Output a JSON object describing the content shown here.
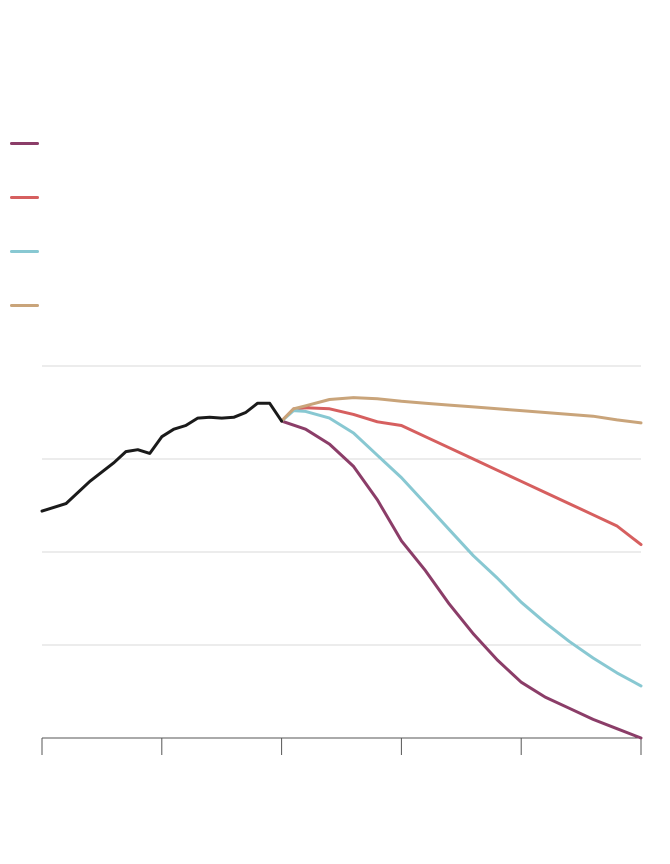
{
  "chart_data": {
    "type": "line",
    "title": "",
    "xlabel": "",
    "ylabel": "",
    "x_range": [
      0,
      100
    ],
    "y_range": [
      0,
      100
    ],
    "grid": true,
    "legend_placement": "top-left",
    "x_ticks": [
      0,
      20,
      40,
      60,
      80,
      100
    ],
    "y_gridlines": [
      25,
      50,
      75,
      100
    ],
    "x_tick_labels": [],
    "y_tick_labels": [],
    "series": [
      {
        "color": "#1a1a1a",
        "x": [
          0,
          4,
          8,
          12,
          14,
          16,
          18,
          20,
          22,
          24,
          26,
          28,
          30,
          32,
          34,
          36,
          38,
          40
        ],
        "y": [
          61,
          63,
          69,
          74,
          77,
          77.5,
          76.5,
          81,
          83,
          84,
          86,
          86.2,
          86,
          86.2,
          87.5,
          90,
          90,
          85.2
        ]
      },
      {
        "color": "#8b3d68",
        "x": [
          40,
          44,
          48,
          52,
          56,
          60,
          64,
          68,
          72,
          76,
          80,
          84,
          88,
          92,
          96,
          100
        ],
        "y": [
          85.2,
          83,
          79,
          73,
          64,
          53,
          45,
          36,
          28,
          21,
          15,
          11,
          8,
          5,
          2.5,
          0
        ]
      },
      {
        "color": "#d65f5f",
        "x": [
          40,
          42,
          44,
          48,
          52,
          56,
          60,
          64,
          68,
          72,
          76,
          80,
          84,
          88,
          92,
          96,
          100
        ],
        "y": [
          85.2,
          88.5,
          88.8,
          88.5,
          87,
          85,
          84,
          81,
          78,
          75,
          72,
          69,
          66,
          63,
          60,
          57,
          52
        ]
      },
      {
        "color": "#88c8d2",
        "x": [
          40,
          42,
          44,
          48,
          52,
          56,
          60,
          64,
          68,
          72,
          76,
          80,
          84,
          88,
          92,
          96,
          100
        ],
        "y": [
          85.2,
          88,
          87.8,
          86,
          82,
          76,
          70,
          63,
          56,
          49,
          43,
          36.5,
          31,
          26,
          21.5,
          17.5,
          14
        ]
      },
      {
        "color": "#c9a47a",
        "x": [
          40,
          42,
          44,
          48,
          52,
          56,
          60,
          64,
          68,
          72,
          76,
          80,
          84,
          88,
          92,
          96,
          100
        ],
        "y": [
          85.2,
          88.5,
          89.3,
          91,
          91.5,
          91.2,
          90.5,
          90,
          89.5,
          89,
          88.5,
          88,
          87.5,
          87,
          86.5,
          85.5,
          84.7
        ]
      }
    ],
    "legend": [
      {
        "color": "#8b3d68",
        "label": ""
      },
      {
        "color": "#d65f5f",
        "label": ""
      },
      {
        "color": "#88c8d2",
        "label": ""
      },
      {
        "color": "#c9a47a",
        "label": ""
      }
    ]
  }
}
